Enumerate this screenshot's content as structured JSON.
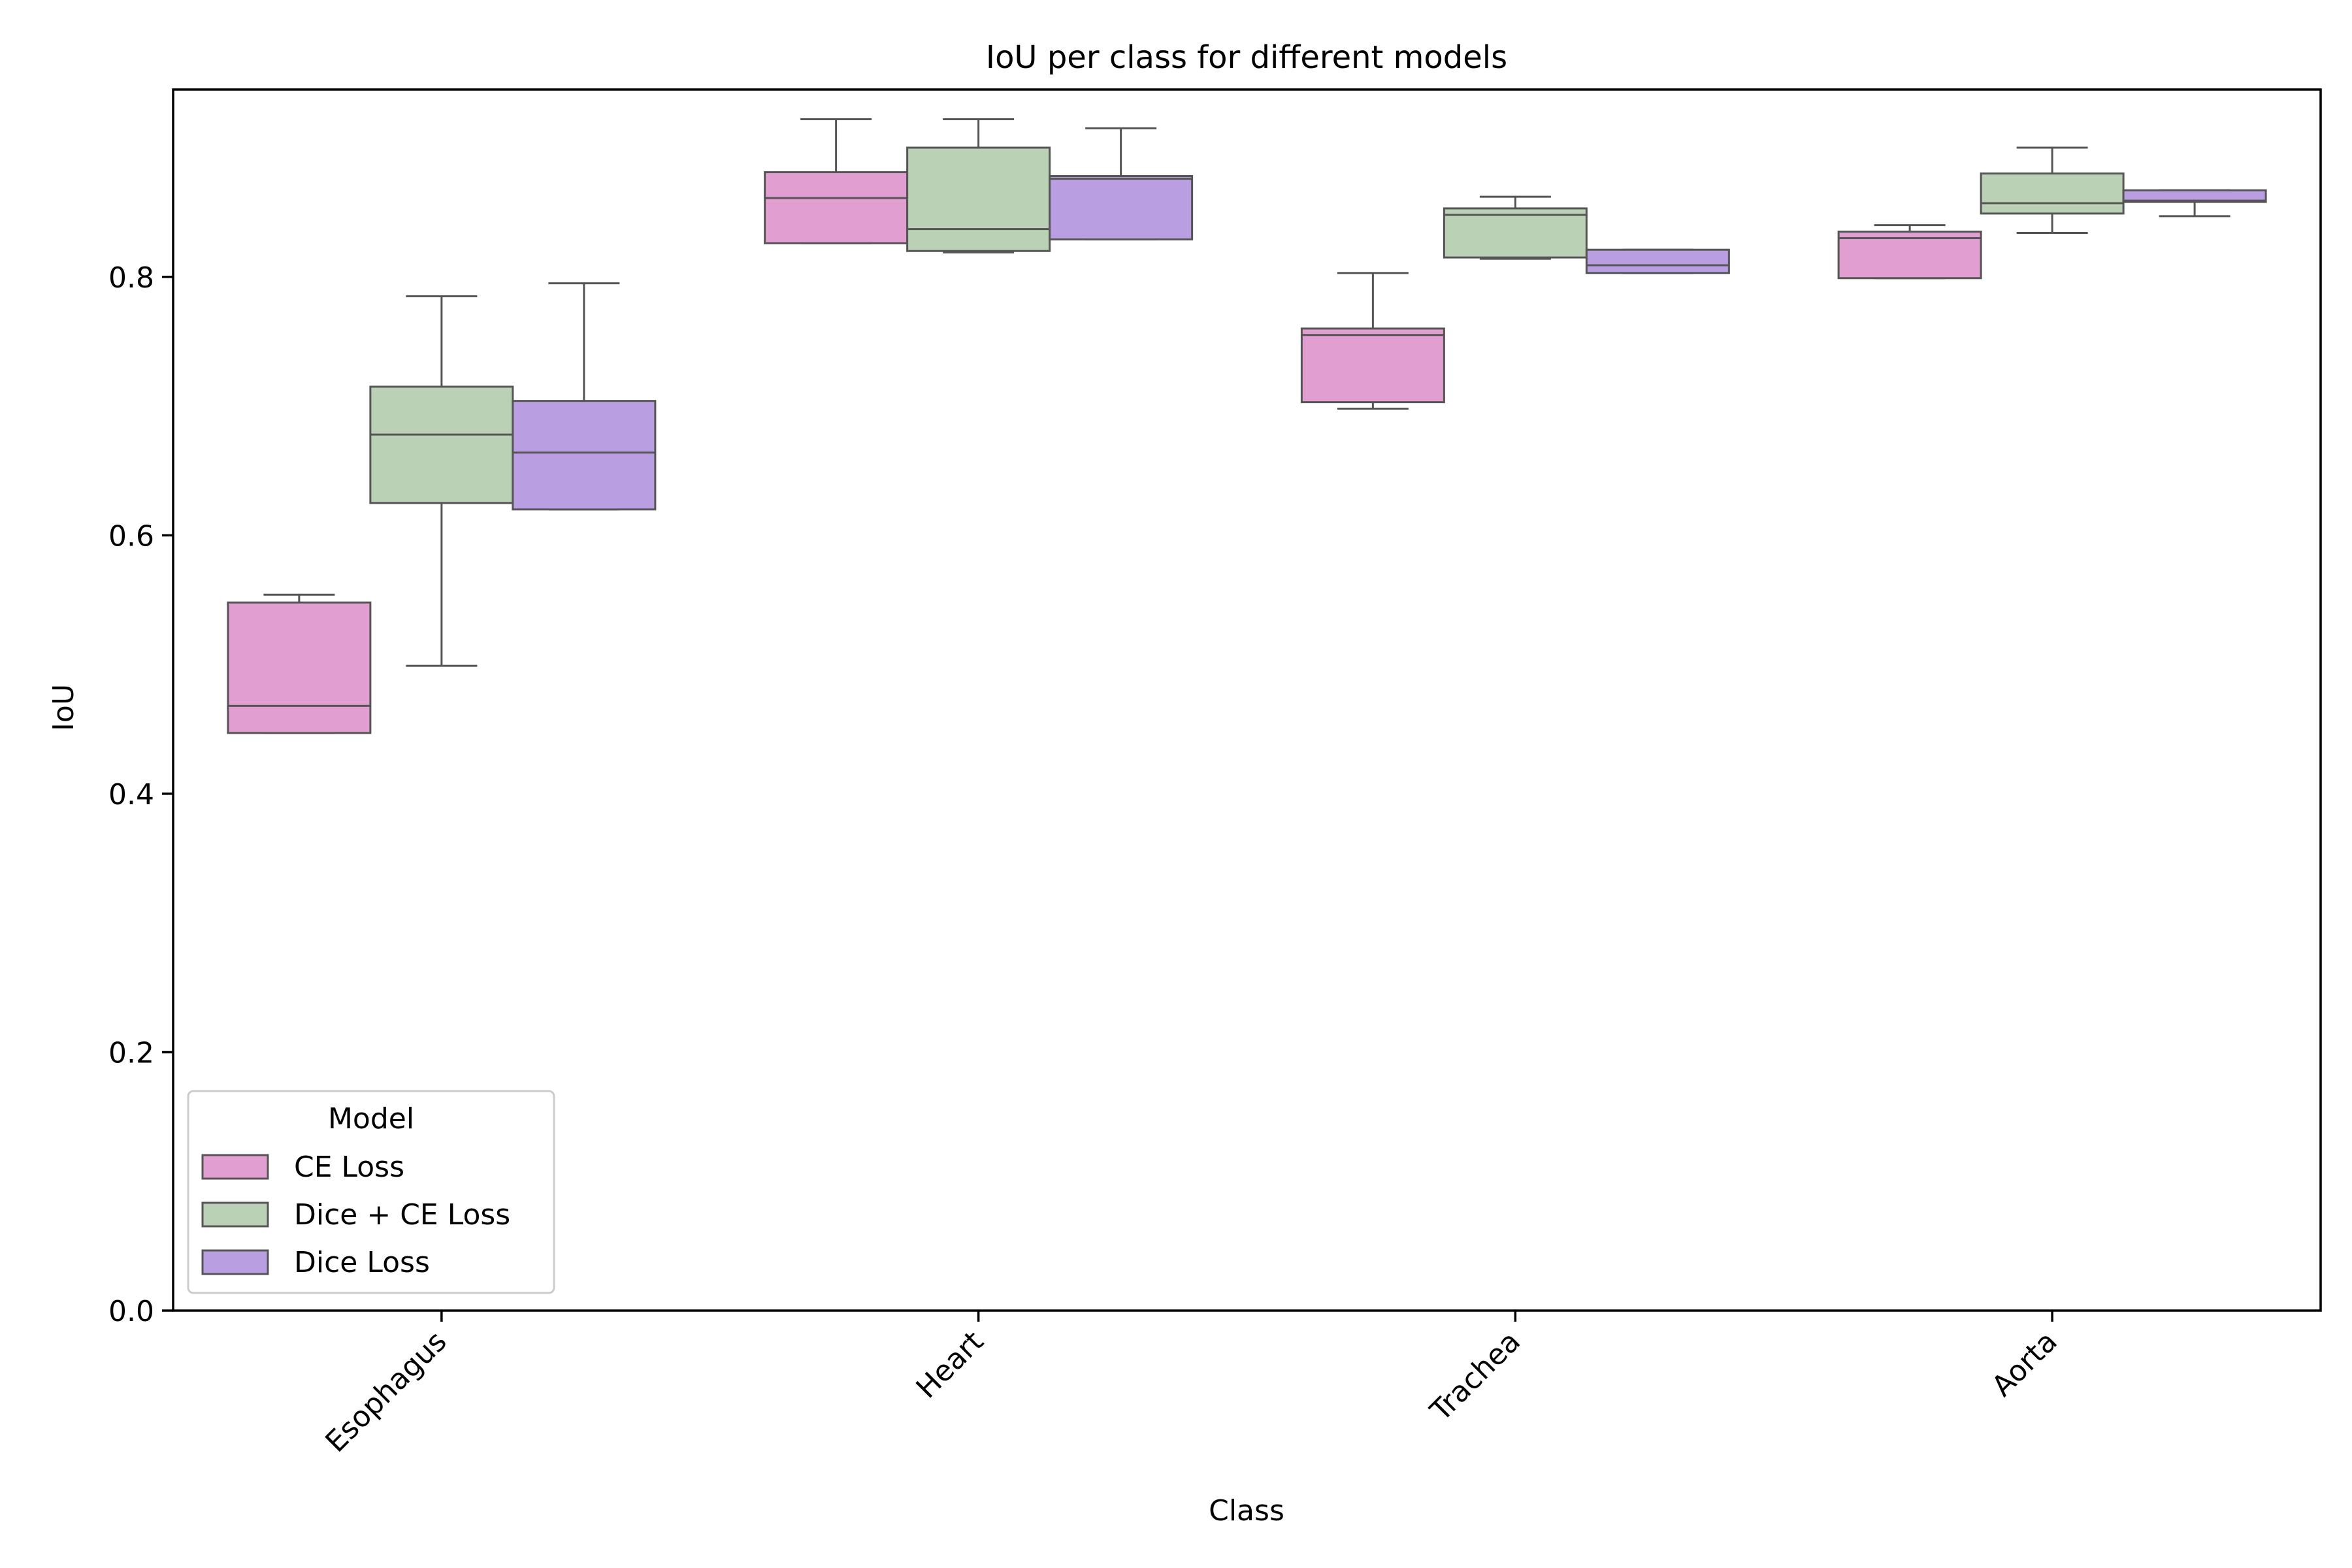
{
  "chart_data": {
    "type": "box",
    "title": "IoU per class for different models",
    "xlabel": "Class",
    "ylabel": "IoU",
    "ylim": [
      0.0,
      0.945
    ],
    "yticks": [
      0.0,
      0.2,
      0.4,
      0.6,
      0.8
    ],
    "ytick_labels": [
      "0.0",
      "0.2",
      "0.4",
      "0.6",
      "0.8"
    ],
    "categories": [
      "Esophagus",
      "Heart",
      "Trachea",
      "Aorta"
    ],
    "legend": {
      "title": "Model",
      "position": "lower-left"
    },
    "grid": false,
    "series": [
      {
        "name": "CE Loss",
        "color": "#e19ed0",
        "boxes": [
          {
            "whisker_low": 0.447,
            "q1": 0.447,
            "median": 0.468,
            "q3": 0.548,
            "whisker_high": 0.554
          },
          {
            "whisker_low": 0.826,
            "q1": 0.826,
            "median": 0.861,
            "q3": 0.881,
            "whisker_high": 0.922
          },
          {
            "whisker_low": 0.698,
            "q1": 0.703,
            "median": 0.755,
            "q3": 0.76,
            "whisker_high": 0.803
          },
          {
            "whisker_low": 0.799,
            "q1": 0.799,
            "median": 0.83,
            "q3": 0.835,
            "whisker_high": 0.84
          }
        ]
      },
      {
        "name": "Dice + CE Loss",
        "color": "#bad1b5",
        "boxes": [
          {
            "whisker_low": 0.499,
            "q1": 0.625,
            "median": 0.678,
            "q3": 0.715,
            "whisker_high": 0.785
          },
          {
            "whisker_low": 0.819,
            "q1": 0.82,
            "median": 0.837,
            "q3": 0.9,
            "whisker_high": 0.922
          },
          {
            "whisker_low": 0.814,
            "q1": 0.815,
            "median": 0.848,
            "q3": 0.853,
            "whisker_high": 0.862
          },
          {
            "whisker_low": 0.834,
            "q1": 0.849,
            "median": 0.857,
            "q3": 0.88,
            "whisker_high": 0.9
          }
        ]
      },
      {
        "name": "Dice Loss",
        "color": "#b99fe2",
        "boxes": [
          {
            "whisker_low": 0.62,
            "q1": 0.62,
            "median": 0.664,
            "q3": 0.704,
            "whisker_high": 0.795
          },
          {
            "whisker_low": 0.829,
            "q1": 0.829,
            "median": 0.876,
            "q3": 0.878,
            "whisker_high": 0.915
          },
          {
            "whisker_low": 0.803,
            "q1": 0.803,
            "median": 0.809,
            "q3": 0.821,
            "whisker_high": 0.821
          },
          {
            "whisker_low": 0.847,
            "q1": 0.858,
            "median": 0.859,
            "q3": 0.867,
            "whisker_high": 0.867
          }
        ]
      }
    ]
  }
}
